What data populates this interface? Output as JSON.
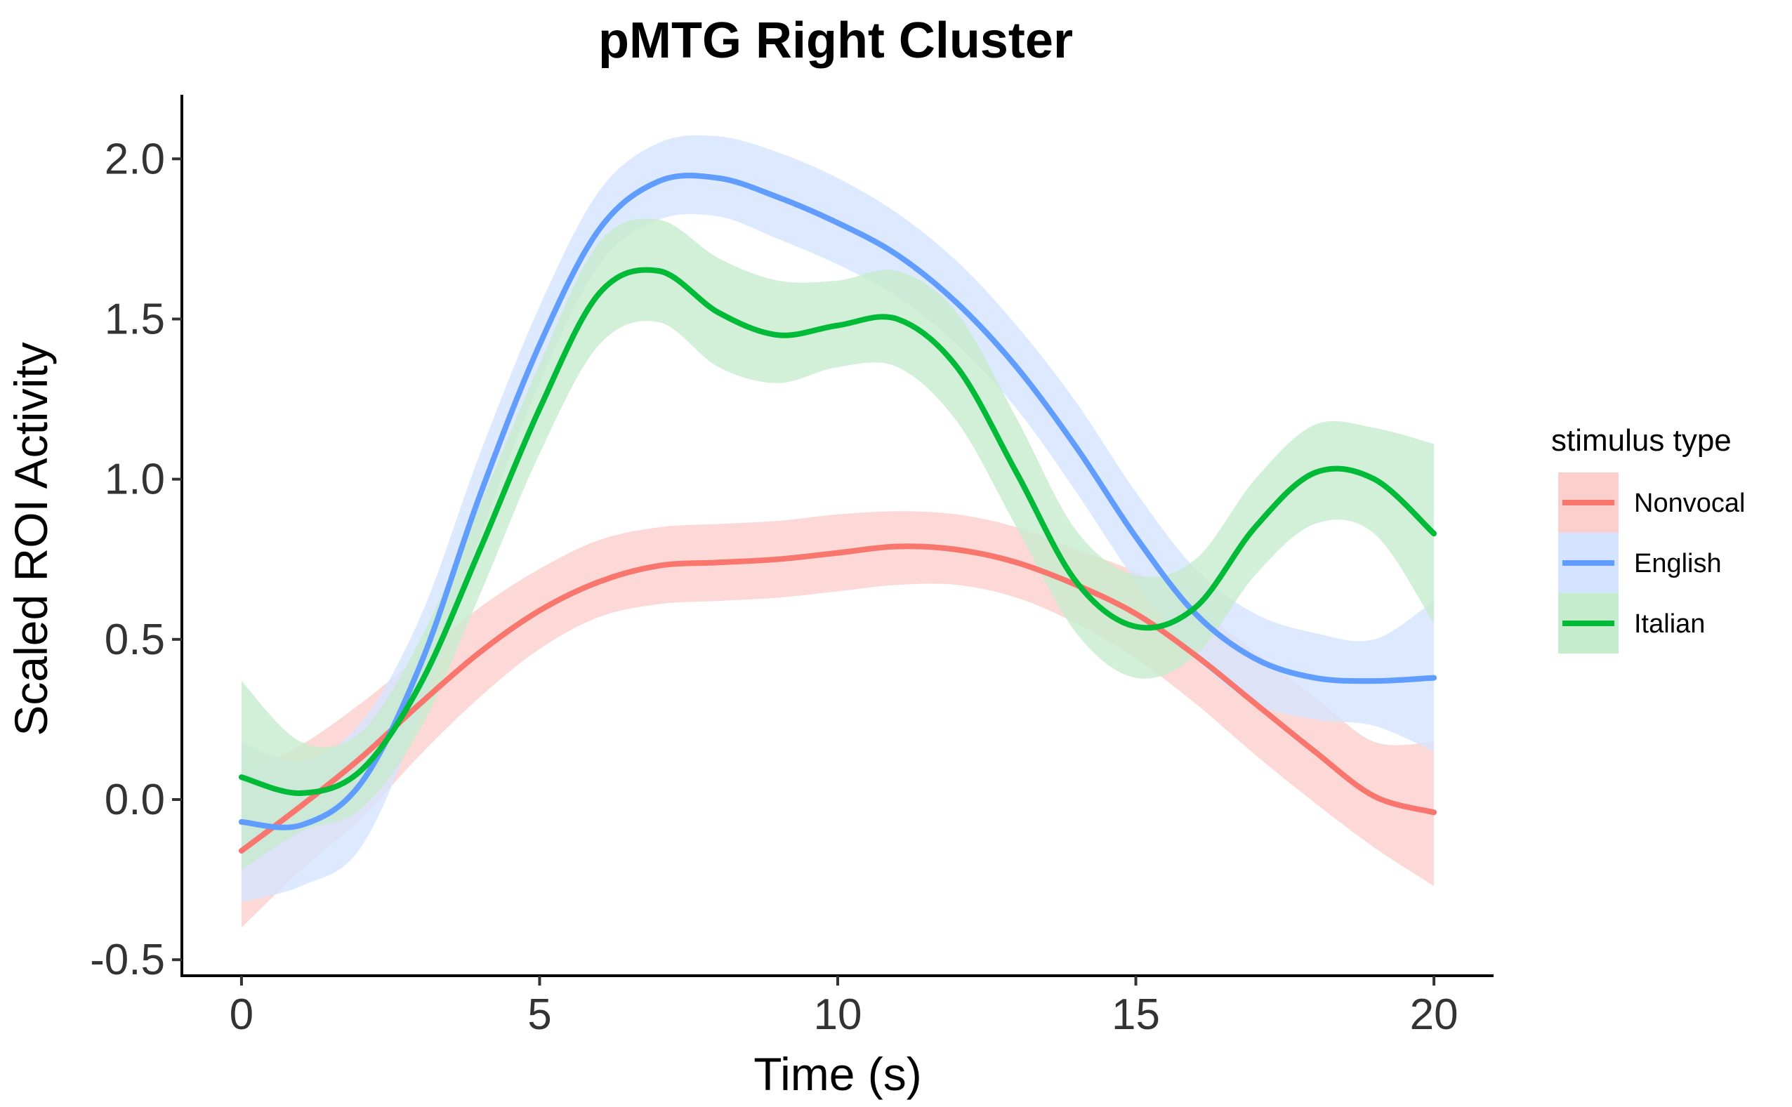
{
  "chart_data": {
    "type": "line",
    "title": "pMTG Right Cluster",
    "xlabel": "Time (s)",
    "ylabel": "Scaled ROI Activity",
    "xlim": [
      -1,
      21
    ],
    "ylim": [
      -0.55,
      2.2
    ],
    "x_ticks": [
      0,
      5,
      10,
      15,
      20
    ],
    "x_tick_labels": [
      "0",
      "5",
      "10",
      "15",
      "20"
    ],
    "y_ticks": [
      -0.5,
      0,
      0.5,
      1,
      1.5,
      2
    ],
    "y_tick_labels": [
      "-0.5",
      "0.0",
      "0.5",
      "1.0",
      "1.5",
      "2.0"
    ],
    "grid": false,
    "legend_title": "stimulus type",
    "legend_position": "right",
    "x": [
      0,
      1,
      2,
      3,
      4,
      5,
      6,
      7,
      8,
      9,
      10,
      11,
      12,
      13,
      14,
      15,
      16,
      17,
      18,
      19,
      20
    ],
    "series": [
      {
        "name": "Nonvocal",
        "color": "#F8766D",
        "fill": "#FBCFCC",
        "values": [
          -0.16,
          -0.02,
          0.13,
          0.3,
          0.46,
          0.59,
          0.68,
          0.73,
          0.74,
          0.75,
          0.77,
          0.79,
          0.78,
          0.74,
          0.67,
          0.58,
          0.45,
          0.3,
          0.15,
          0.01,
          -0.04
        ],
        "lower": [
          -0.4,
          -0.22,
          -0.06,
          0.14,
          0.32,
          0.47,
          0.57,
          0.61,
          0.62,
          0.63,
          0.65,
          0.67,
          0.67,
          0.63,
          0.55,
          0.44,
          0.3,
          0.14,
          -0.01,
          -0.15,
          -0.27
        ],
        "upper": [
          0.08,
          0.17,
          0.3,
          0.45,
          0.6,
          0.72,
          0.81,
          0.85,
          0.86,
          0.87,
          0.89,
          0.9,
          0.89,
          0.85,
          0.78,
          0.71,
          0.6,
          0.46,
          0.32,
          0.18,
          0.18
        ]
      },
      {
        "name": "English",
        "color": "#619CFF",
        "fill": "#D4E3FF",
        "values": [
          -0.07,
          -0.08,
          0.05,
          0.42,
          0.95,
          1.42,
          1.78,
          1.93,
          1.94,
          1.88,
          1.8,
          1.7,
          1.55,
          1.35,
          1.1,
          0.82,
          0.58,
          0.44,
          0.38,
          0.37,
          0.38
        ],
        "lower": [
          -0.32,
          -0.27,
          -0.15,
          0.27,
          0.82,
          1.3,
          1.67,
          1.81,
          1.82,
          1.75,
          1.67,
          1.57,
          1.42,
          1.22,
          0.96,
          0.68,
          0.44,
          0.3,
          0.25,
          0.23,
          0.15
        ],
        "upper": [
          0.18,
          0.12,
          0.24,
          0.57,
          1.08,
          1.54,
          1.9,
          2.05,
          2.07,
          2.02,
          1.94,
          1.83,
          1.68,
          1.48,
          1.24,
          0.96,
          0.72,
          0.58,
          0.52,
          0.5,
          0.62
        ]
      },
      {
        "name": "Italian",
        "color": "#00BA38",
        "fill": "#C7EBCD",
        "values": [
          0.07,
          0.02,
          0.09,
          0.36,
          0.78,
          1.22,
          1.58,
          1.65,
          1.52,
          1.45,
          1.48,
          1.5,
          1.35,
          1.02,
          0.68,
          0.54,
          0.6,
          0.85,
          1.02,
          1.0,
          0.83
        ],
        "lower": [
          -0.22,
          -0.1,
          -0.03,
          0.22,
          0.64,
          1.08,
          1.42,
          1.49,
          1.35,
          1.3,
          1.35,
          1.35,
          1.18,
          0.85,
          0.52,
          0.38,
          0.45,
          0.7,
          0.86,
          0.83,
          0.55
        ],
        "upper": [
          0.37,
          0.18,
          0.21,
          0.5,
          0.92,
          1.36,
          1.74,
          1.81,
          1.69,
          1.62,
          1.62,
          1.65,
          1.52,
          1.19,
          0.84,
          0.7,
          0.75,
          1.0,
          1.17,
          1.16,
          1.11
        ]
      }
    ]
  }
}
